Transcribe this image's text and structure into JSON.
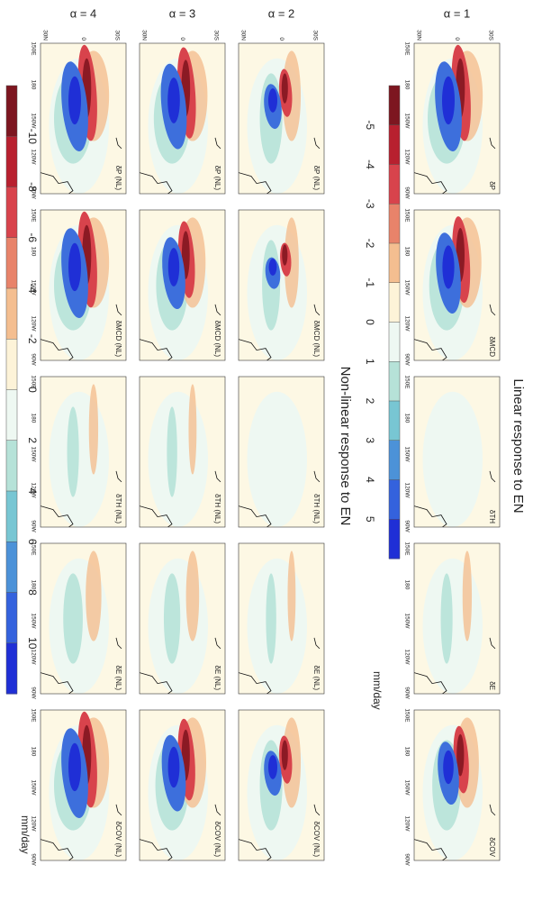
{
  "title_linear": "Linear response to EN",
  "title_nonlinear": "Non-linear response to EN",
  "lat_labels": [
    "30S",
    "0",
    "30N"
  ],
  "lon_labels": [
    "150E",
    "180",
    "150W",
    "120W",
    "90W"
  ],
  "rows": [
    {
      "label": "α = 1",
      "panels": [
        "δP",
        "δMCD",
        "δTH",
        "δE",
        "δCOV"
      ]
    },
    {
      "label": "α = 2",
      "panels": [
        "δP (NL)",
        "δMCD (NL)",
        "δTH (NL)",
        "δE (NL)",
        "δCOV (NL)"
      ]
    },
    {
      "label": "α = 3",
      "panels": [
        "δP (NL)",
        "δMCD (NL)",
        "δTH (NL)",
        "δE (NL)",
        "δCOV (NL)"
      ]
    },
    {
      "label": "α = 4",
      "panels": [
        "δP (NL)",
        "δMCD (NL)",
        "δTH (NL)",
        "δE (NL)",
        "δCOV (NL)"
      ]
    }
  ],
  "colorbars": [
    {
      "ticks": [
        -5,
        -4,
        -3,
        -2,
        -1,
        0,
        1,
        2,
        3,
        4,
        5
      ],
      "colors": [
        "#7d1620",
        "#b8202f",
        "#d8434c",
        "#e8836a",
        "#f4be90",
        "#fdf3d8",
        "#eef8f2",
        "#b6e2d8",
        "#78c6d3",
        "#4c92d8",
        "#3462dd",
        "#1f2fd6"
      ],
      "unit": "mm/day"
    },
    {
      "ticks": [
        -10,
        -8,
        -6,
        -4,
        -2,
        0,
        2,
        4,
        6,
        8,
        10
      ],
      "colors": [
        "#7d1620",
        "#b8202f",
        "#d8434c",
        "#e8836a",
        "#f4be90",
        "#fdf3d8",
        "#eef8f2",
        "#b6e2d8",
        "#78c6d3",
        "#4c92d8",
        "#3462dd",
        "#1f2fd6"
      ],
      "unit": "mm/day"
    }
  ]
}
